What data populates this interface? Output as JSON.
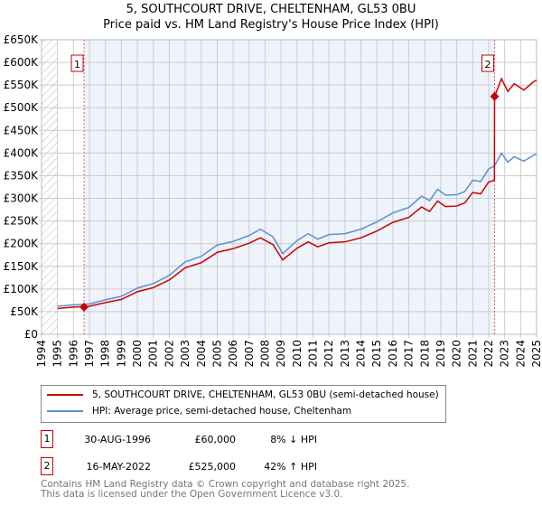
{
  "chart_data": {
    "type": "line",
    "title": "5, SOUTHCOURT DRIVE, CHELTENHAM, GL53 0BU",
    "subtitle": "Price paid vs. HM Land Registry's House Price Index (HPI)",
    "xlim": [
      1994,
      2025
    ],
    "ylim": [
      0,
      650000
    ],
    "x_ticks": [
      "1994",
      "1995",
      "1996",
      "1997",
      "1998",
      "1999",
      "2000",
      "2001",
      "2002",
      "2003",
      "2004",
      "2005",
      "2006",
      "2007",
      "2008",
      "2009",
      "2010",
      "2011",
      "2012",
      "2013",
      "2014",
      "2015",
      "2016",
      "2017",
      "2018",
      "2019",
      "2020",
      "2021",
      "2022",
      "2023",
      "2024",
      "2025"
    ],
    "y_ticks": [
      {
        "v": 0,
        "l": "£0"
      },
      {
        "v": 50000,
        "l": "£50K"
      },
      {
        "v": 100000,
        "l": "£100K"
      },
      {
        "v": 150000,
        "l": "£150K"
      },
      {
        "v": 200000,
        "l": "£200K"
      },
      {
        "v": 250000,
        "l": "£250K"
      },
      {
        "v": 300000,
        "l": "£300K"
      },
      {
        "v": 350000,
        "l": "£350K"
      },
      {
        "v": 400000,
        "l": "£400K"
      },
      {
        "v": 450000,
        "l": "£450K"
      },
      {
        "v": 500000,
        "l": "£500K"
      },
      {
        "v": 550000,
        "l": "£550K"
      },
      {
        "v": 600000,
        "l": "£600K"
      },
      {
        "v": 650000,
        "l": "£650K"
      }
    ],
    "series": [
      {
        "name": "5, SOUTHCOURT DRIVE, CHELTENHAM, GL53 0BU (semi-detached house)",
        "color": "#cc0000",
        "x": [
          1995,
          1996,
          1997,
          1998,
          1999,
          2000,
          2001,
          2002,
          2003,
          2004,
          2005,
          2006,
          2007,
          2007.7,
          2008.5,
          2009.1,
          2010,
          2010.7,
          2011.3,
          2012,
          2013,
          2014,
          2015,
          2016,
          2017,
          2017.8,
          2018.3,
          2018.8,
          2019.3,
          2020,
          2020.5,
          2021,
          2021.5,
          2022,
          2022.36,
          2022.37,
          2022.8,
          2023.2,
          2023.6,
          2024.2,
          2024.8,
          2025
        ],
        "y": [
          57000,
          60000,
          62000,
          70000,
          77000,
          94000,
          103000,
          120000,
          147000,
          158000,
          181000,
          189000,
          201000,
          213000,
          198000,
          164000,
          190000,
          204000,
          193000,
          202000,
          204000,
          213000,
          228000,
          247000,
          258000,
          281000,
          271000,
          294000,
          282000,
          283000,
          290000,
          313000,
          310000,
          336000,
          340000,
          525000,
          564000,
          536000,
          553000,
          539000,
          557000,
          561000
        ]
      },
      {
        "name": "HPI: Average price, semi-detached house, Cheltenham",
        "color": "#5b8fd4",
        "x": [
          1995,
          1996,
          1997,
          1998,
          1999,
          2000,
          2001,
          2002,
          2003,
          2004,
          2005,
          2006,
          2007,
          2007.7,
          2008.5,
          2009.1,
          2010,
          2010.7,
          2011.3,
          2012,
          2013,
          2014,
          2015,
          2016,
          2017,
          2017.8,
          2018.3,
          2018.8,
          2019.3,
          2020,
          2020.5,
          2021,
          2021.5,
          2022,
          2022.37,
          2022.8,
          2023.2,
          2023.6,
          2024.2,
          2024.8,
          2025
        ],
        "y": [
          62000,
          65000,
          67000,
          76000,
          84000,
          102000,
          112000,
          130000,
          160000,
          172000,
          197000,
          205000,
          218000,
          232000,
          215000,
          178000,
          207000,
          222000,
          210000,
          220000,
          222000,
          232000,
          248000,
          268000,
          280000,
          305000,
          295000,
          320000,
          307000,
          308000,
          315000,
          340000,
          337000,
          365000,
          372000,
          400000,
          380000,
          392000,
          382000,
          395000,
          398000
        ]
      }
    ],
    "sales": [
      {
        "label": "1",
        "x": 1996.66,
        "y": 60000,
        "date": "30-AUG-1996",
        "price": "£60,000",
        "hpi": "8% ↓ HPI"
      },
      {
        "label": "2",
        "x": 2022.37,
        "y": 525000,
        "date": "16-MAY-2022",
        "price": "£525,000",
        "hpi": "42% ↑ HPI"
      }
    ]
  },
  "footer": [
    "Contains HM Land Registry data © Crown copyright and database right 2025.",
    "This data is licensed under the Open Government Licence v3.0."
  ]
}
